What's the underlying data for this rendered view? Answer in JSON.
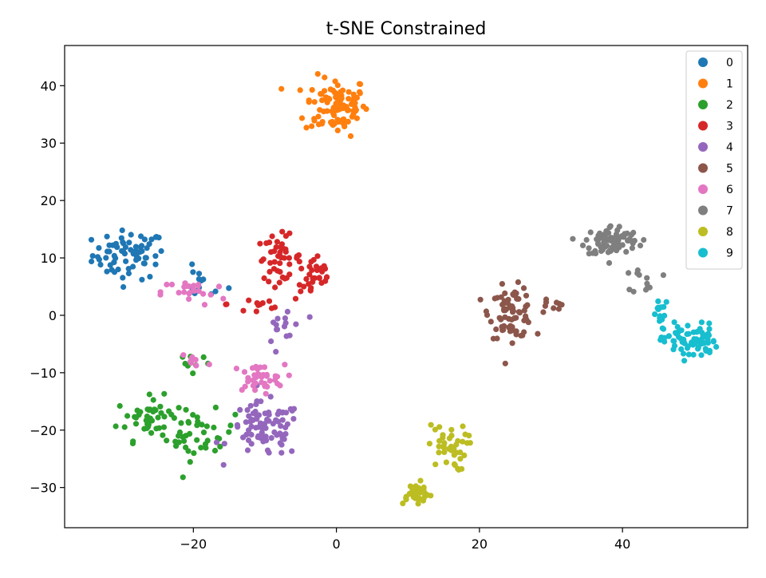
{
  "chart_data": {
    "type": "scatter",
    "title": "t-SNE Constrained",
    "xlabel": "",
    "ylabel": "",
    "xlim": [
      -38,
      57.5
    ],
    "ylim": [
      -37,
      47
    ],
    "xticks": [
      -20,
      0,
      20,
      40
    ],
    "yticks": [
      -30,
      -20,
      -10,
      0,
      10,
      20,
      30,
      40
    ],
    "grid": false,
    "legend_position": "top-right",
    "series": [
      {
        "name": "0",
        "color": "#1f77b4",
        "clusters": [
          {
            "cx": -29,
            "cy": 10.5,
            "sx": 3.0,
            "sy": 2.5,
            "n": 70
          },
          {
            "cx": -19,
            "cy": 5.5,
            "sx": 2.2,
            "sy": 1.6,
            "n": 14
          }
        ]
      },
      {
        "name": "1",
        "color": "#ff7f0e",
        "clusters": [
          {
            "cx": 0,
            "cy": 36.5,
            "sx": 2.6,
            "sy": 3.0,
            "n": 100
          }
        ]
      },
      {
        "name": "2",
        "color": "#2ca02c",
        "clusters": [
          {
            "cx": -26,
            "cy": -18,
            "sx": 2.8,
            "sy": 2.2,
            "n": 50
          },
          {
            "cx": -19,
            "cy": -21,
            "sx": 2.8,
            "sy": 2.5,
            "n": 35
          },
          {
            "cx": -20,
            "cy": -8,
            "sx": 1.8,
            "sy": 2.0,
            "n": 8
          }
        ]
      },
      {
        "name": "3",
        "color": "#d62728",
        "clusters": [
          {
            "cx": -8,
            "cy": 10,
            "sx": 1.8,
            "sy": 2.3,
            "n": 45
          },
          {
            "cx": -3,
            "cy": 6.5,
            "sx": 1.6,
            "sy": 2.3,
            "n": 30
          },
          {
            "cx": -11,
            "cy": 2,
            "sx": 2.5,
            "sy": 1.4,
            "n": 12
          }
        ]
      },
      {
        "name": "4",
        "color": "#9467bd",
        "clusters": [
          {
            "cx": -10,
            "cy": -20,
            "sx": 3.0,
            "sy": 2.8,
            "n": 85
          },
          {
            "cx": -7,
            "cy": -2,
            "sx": 1.6,
            "sy": 3.0,
            "n": 15
          }
        ]
      },
      {
        "name": "5",
        "color": "#8c564b",
        "clusters": [
          {
            "cx": 24.5,
            "cy": 0.5,
            "sx": 1.8,
            "sy": 2.6,
            "n": 80
          },
          {
            "cx": 30,
            "cy": 1.5,
            "sx": 1.5,
            "sy": 1.0,
            "n": 8
          }
        ]
      },
      {
        "name": "6",
        "color": "#e377c2",
        "clusters": [
          {
            "cx": -11,
            "cy": -11,
            "sx": 2.2,
            "sy": 1.4,
            "n": 38
          },
          {
            "cx": -20,
            "cy": 4,
            "sx": 2.6,
            "sy": 1.4,
            "n": 24
          },
          {
            "cx": -20,
            "cy": -8,
            "sx": 1.5,
            "sy": 1.5,
            "n": 8
          }
        ]
      },
      {
        "name": "7",
        "color": "#7f7f7f",
        "clusters": [
          {
            "cx": 38.5,
            "cy": 13,
            "sx": 2.2,
            "sy": 1.6,
            "n": 85
          },
          {
            "cx": 43.5,
            "cy": 6,
            "sx": 1.2,
            "sy": 1.5,
            "n": 12
          }
        ]
      },
      {
        "name": "8",
        "color": "#bcbd22",
        "clusters": [
          {
            "cx": 11,
            "cy": -31,
            "sx": 1.4,
            "sy": 1.1,
            "n": 40
          },
          {
            "cx": 15.5,
            "cy": -23,
            "sx": 1.6,
            "sy": 2.4,
            "n": 40
          }
        ]
      },
      {
        "name": "9",
        "color": "#17becf",
        "clusters": [
          {
            "cx": 49.5,
            "cy": -4.5,
            "sx": 2.2,
            "sy": 1.8,
            "n": 75
          },
          {
            "cx": 45.5,
            "cy": 0,
            "sx": 0.9,
            "sy": 1.5,
            "n": 14
          }
        ]
      }
    ]
  }
}
